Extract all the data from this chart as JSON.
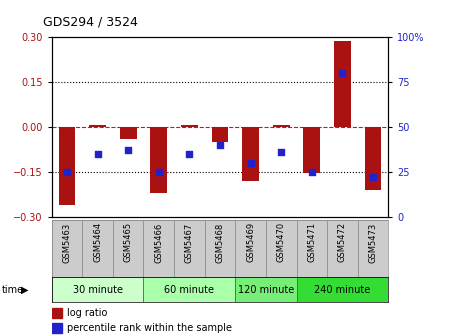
{
  "title": "GDS294 / 3524",
  "samples": [
    "GSM5463",
    "GSM5464",
    "GSM5465",
    "GSM5466",
    "GSM5467",
    "GSM5468",
    "GSM5469",
    "GSM5470",
    "GSM5471",
    "GSM5472",
    "GSM5473"
  ],
  "log_ratio": [
    -0.26,
    0.005,
    -0.04,
    -0.22,
    0.005,
    -0.05,
    -0.18,
    0.005,
    -0.155,
    0.285,
    -0.21
  ],
  "percentile": [
    25,
    35,
    37,
    25,
    35,
    40,
    30,
    36,
    25,
    80,
    22
  ],
  "bar_color": "#aa1111",
  "dot_color": "#2222cc",
  "ylim_left": [
    -0.3,
    0.3
  ],
  "ylim_right": [
    0,
    100
  ],
  "yticks_left": [
    -0.3,
    -0.15,
    0,
    0.15,
    0.3
  ],
  "yticks_right": [
    0,
    25,
    50,
    75,
    100
  ],
  "hlines": [
    0.15,
    0,
    -0.15
  ],
  "hline_styles": [
    "dotted",
    "dashed",
    "dotted"
  ],
  "hline_colors": [
    "black",
    "red",
    "black"
  ],
  "groups": [
    {
      "label": "30 minute",
      "start": 0,
      "end": 3,
      "color": "#ccffcc"
    },
    {
      "label": "60 minute",
      "start": 3,
      "end": 6,
      "color": "#aaffaa"
    },
    {
      "label": "120 minute",
      "start": 6,
      "end": 8,
      "color": "#77ee77"
    },
    {
      "label": "240 minute",
      "start": 8,
      "end": 11,
      "color": "#33dd33"
    }
  ],
  "time_label": "time",
  "legend_log": "log ratio",
  "legend_pct": "percentile rank within the sample",
  "bg_color": "#ffffff"
}
